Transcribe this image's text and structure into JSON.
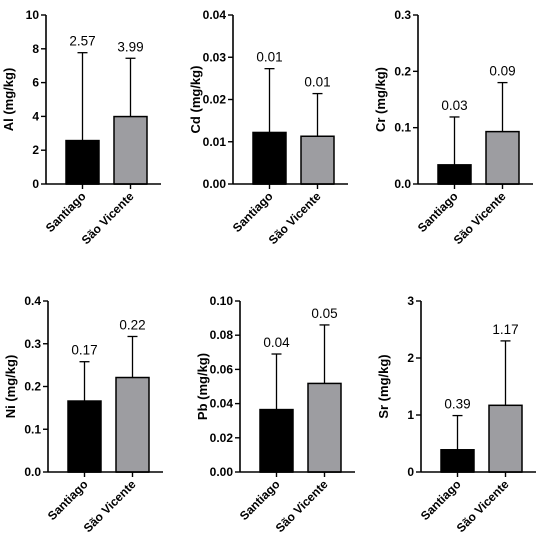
{
  "colors": {
    "Santiago": "#000000",
    "São Vicente": "#9d9da1",
    "axis": "#000000"
  },
  "chart_data": [
    {
      "type": "bar",
      "title": "",
      "ylabel": "Al (mg/kg)",
      "categories": [
        "Santiago",
        "São Vicente"
      ],
      "values": [
        2.57,
        3.99
      ],
      "errors": [
        5.2,
        3.45
      ],
      "data_labels": [
        "2.57",
        "3.99"
      ],
      "ylim": [
        0,
        10
      ],
      "yticks": [
        "0",
        "2",
        "4",
        "6",
        "8",
        "10"
      ]
    },
    {
      "type": "bar",
      "title": "",
      "ylabel": "Cd (mg/kg)",
      "categories": [
        "Santiago",
        "São Vicente"
      ],
      "values": [
        0.0122,
        0.0113
      ],
      "errors": [
        0.0151,
        0.0101
      ],
      "data_labels": [
        "0.01",
        "0.01"
      ],
      "ylim": [
        0,
        0.04
      ],
      "yticks": [
        "0.00",
        "0.01",
        "0.02",
        "0.03",
        "0.04"
      ]
    },
    {
      "type": "bar",
      "title": "",
      "ylabel": "Cr (mg/kg)",
      "categories": [
        "Santiago",
        "São Vicente"
      ],
      "values": [
        0.034,
        0.093
      ],
      "errors": [
        0.085,
        0.087
      ],
      "data_labels": [
        "0.03",
        "0.09"
      ],
      "ylim": [
        0,
        0.3
      ],
      "yticks": [
        "0.0",
        "0.1",
        "0.2",
        "0.3"
      ]
    },
    {
      "type": "bar",
      "title": "",
      "ylabel": "Ni (mg/kg)",
      "categories": [
        "Santiago",
        "São Vicente"
      ],
      "values": [
        0.166,
        0.221
      ],
      "errors": [
        0.092,
        0.096
      ],
      "data_labels": [
        "0.17",
        "0.22"
      ],
      "ylim": [
        0,
        0.4
      ],
      "yticks": [
        "0.0",
        "0.1",
        "0.2",
        "0.3",
        "0.4"
      ]
    },
    {
      "type": "bar",
      "title": "",
      "ylabel": "Pb (mg/kg)",
      "categories": [
        "Santiago",
        "São Vicente"
      ],
      "values": [
        0.0365,
        0.0518
      ],
      "errors": [
        0.0325,
        0.0342
      ],
      "data_labels": [
        "0.04",
        "0.05"
      ],
      "ylim": [
        0,
        0.1
      ],
      "yticks": [
        "0.00",
        "0.02",
        "0.04",
        "0.06",
        "0.08",
        "0.10"
      ]
    },
    {
      "type": "bar",
      "title": "",
      "ylabel": "Sr (mg/kg)",
      "categories": [
        "Santiago",
        "São Vicente"
      ],
      "values": [
        0.39,
        1.17
      ],
      "errors": [
        0.6,
        1.13
      ],
      "data_labels": [
        "0.39",
        "1.17"
      ],
      "ylim": [
        0,
        3
      ],
      "yticks": [
        "0",
        "1",
        "2",
        "3"
      ]
    }
  ]
}
